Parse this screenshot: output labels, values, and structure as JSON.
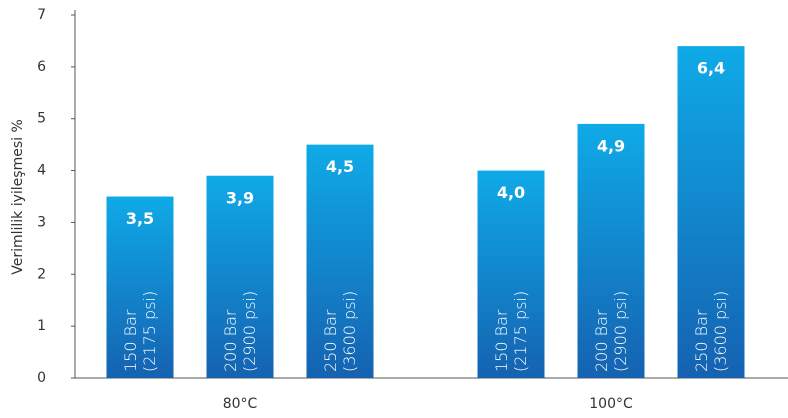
{
  "chart_data": {
    "type": "bar",
    "ylabel": "Verimlilik iyileşmesi %",
    "categories": [
      "80°C",
      "100°C"
    ],
    "series": [
      {
        "name": "150 Bar (2175 psi)",
        "values": [
          3.5,
          4.0
        ],
        "value_labels": [
          "3,5",
          "4,0"
        ]
      },
      {
        "name": "200 Bar (2900 psi)",
        "values": [
          3.9,
          4.9
        ],
        "value_labels": [
          "3,9",
          "4,9"
        ]
      },
      {
        "name": "250 Bar (3600 psi)",
        "values": [
          4.5,
          6.4
        ],
        "value_labels": [
          "4,5",
          "6,4"
        ]
      }
    ],
    "gradient": [
      "#0faae7",
      "#1562b1"
    ],
    "ylim": [
      0,
      7
    ],
    "yticks": [
      0,
      1,
      2,
      3,
      4,
      5,
      6,
      7
    ],
    "grid": false
  }
}
